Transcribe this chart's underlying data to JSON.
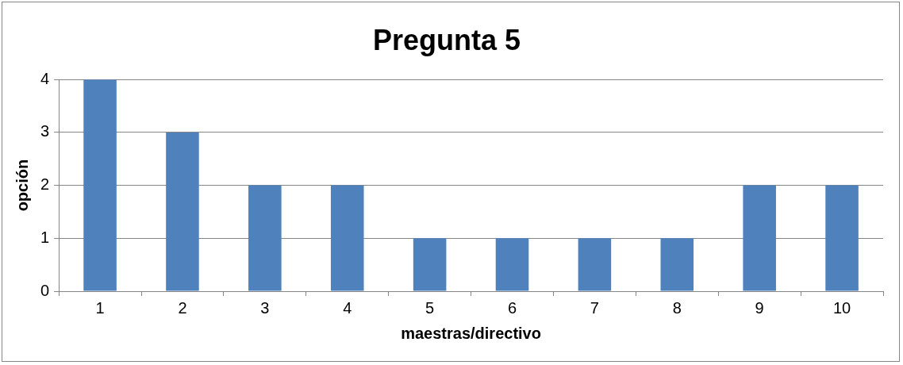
{
  "chart_data": {
    "type": "bar",
    "title": "Pregunta 5",
    "xlabel": "maestras/directivo",
    "ylabel": "opción",
    "categories": [
      "1",
      "2",
      "3",
      "4",
      "5",
      "6",
      "7",
      "8",
      "9",
      "10"
    ],
    "values": [
      4,
      3,
      2,
      2,
      1,
      1,
      1,
      1,
      2,
      2
    ],
    "color": "#4f81bd",
    "ylim": [
      0,
      4
    ],
    "yticks": [
      0,
      1,
      2,
      3,
      4
    ],
    "grid": "y",
    "legend": false
  }
}
